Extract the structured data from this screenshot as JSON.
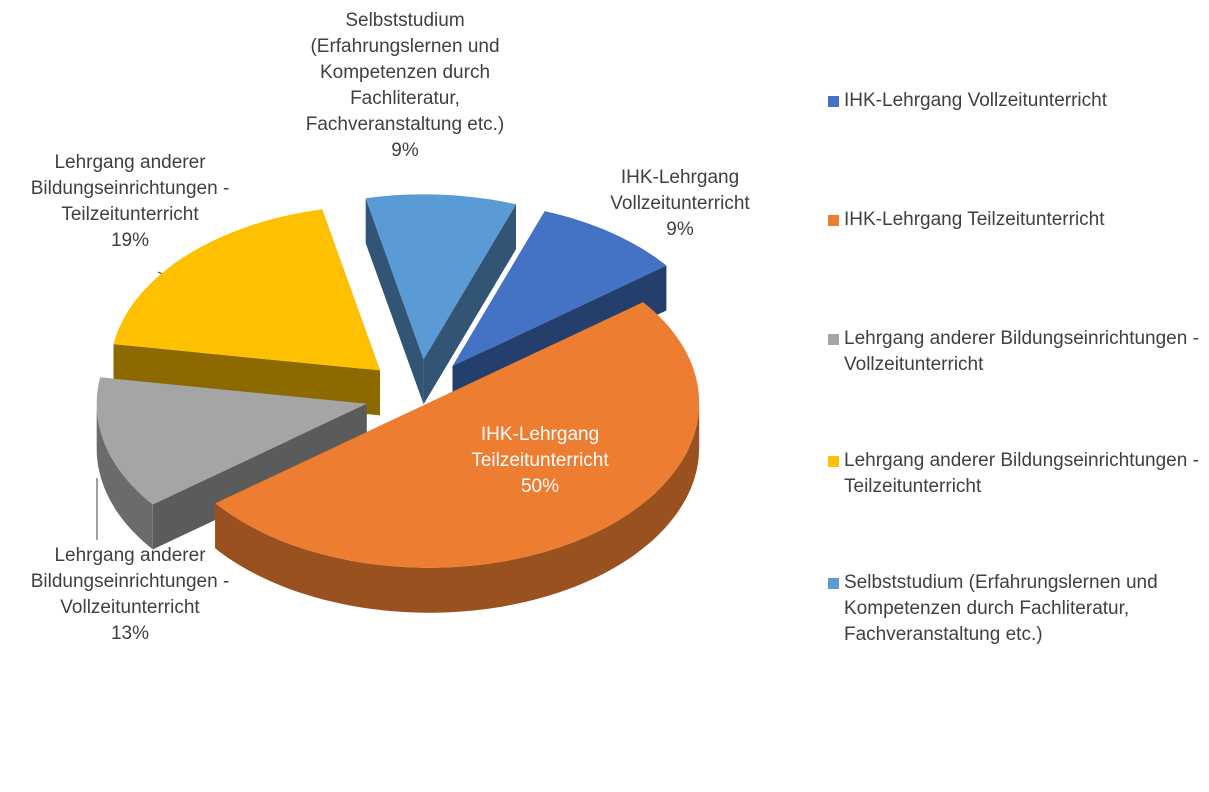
{
  "chart_data": {
    "type": "pie3d",
    "categories": [
      "IHK-Lehrgang Vollzeitunterricht",
      "IHK-Lehrgang Teilzeitunterricht",
      "Lehrgang anderer Bildungseinrichtungen - Vollzeitunterricht",
      "Lehrgang anderer Bildungseinrichtungen - Teilzeitunterricht",
      "Selbststudium (Erfahrungslernen und Kompetenzen durch Fachliteratur, Fachveranstaltung etc.)"
    ],
    "values": [
      9,
      50,
      13,
      19,
      9
    ],
    "value_labels": [
      "9%",
      "50%",
      "13%",
      "19%",
      "9%"
    ],
    "colors": [
      "#4472c4",
      "#ed7d31",
      "#a5a5a5",
      "#ffc000",
      "#5b9bd5"
    ],
    "legend": "right"
  }
}
